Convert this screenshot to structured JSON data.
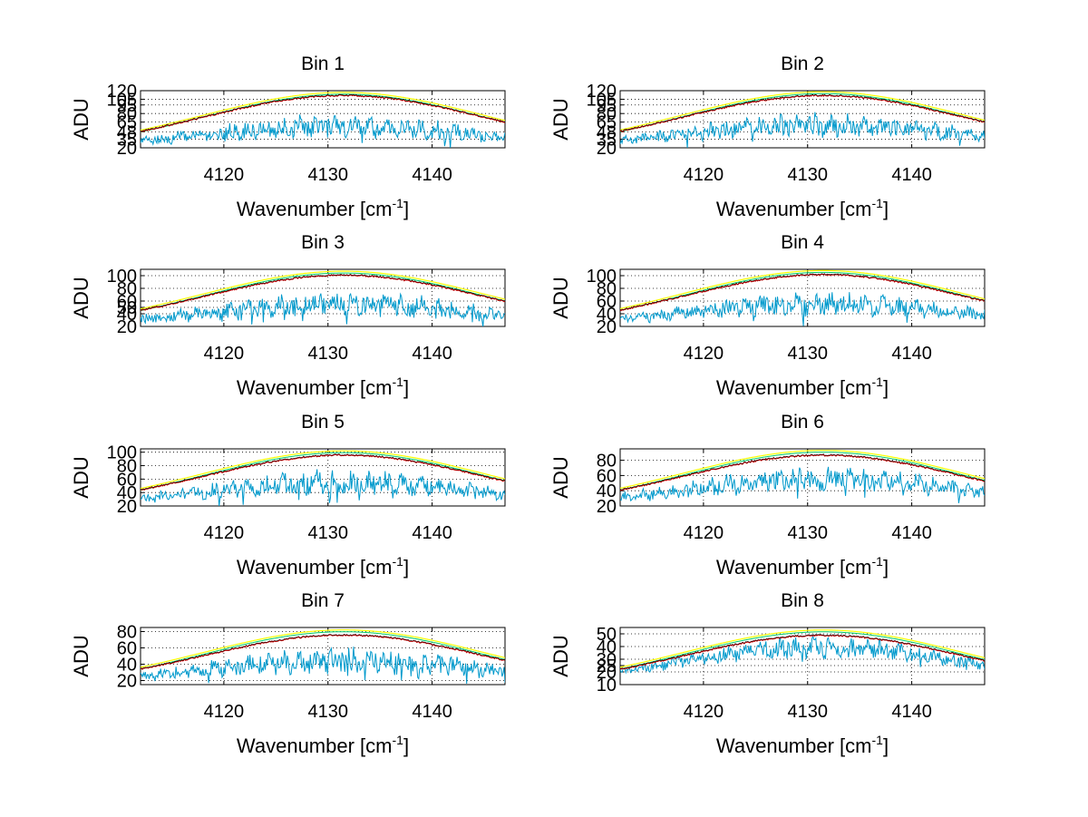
{
  "chart_data": [
    {
      "type": "line",
      "title": "Bin 1",
      "xlabel": "Wavenumber [cm",
      "xlabel_sup": "-1",
      "xlabel_close": "]",
      "ylabel": "ADU",
      "xlim": [
        4112,
        4147
      ],
      "ylim": [
        20,
        120
      ],
      "xticks": [
        4120,
        4130,
        4140
      ],
      "yticks": [
        20,
        35,
        48,
        65,
        80,
        95,
        105,
        120
      ],
      "ytick_labels": [
        "20",
        "35",
        "48",
        "65",
        "80",
        "95",
        "105",
        "120"
      ],
      "reference_peak": 117,
      "base_peak": 112,
      "absorption_center": 58,
      "absorption_amp": 25,
      "grid": true
    },
    {
      "type": "line",
      "title": "Bin 2",
      "xlabel": "Wavenumber [cm",
      "xlabel_sup": "-1",
      "xlabel_close": "]",
      "ylabel": "ADU",
      "xlim": [
        4112,
        4147
      ],
      "ylim": [
        20,
        120
      ],
      "xticks": [
        4120,
        4130,
        4140
      ],
      "yticks": [
        20,
        35,
        48,
        65,
        80,
        95,
        105,
        120
      ],
      "ytick_labels": [
        "20",
        "35",
        "48",
        "65",
        "80",
        "95",
        "105",
        "120"
      ],
      "reference_peak": 118,
      "base_peak": 112,
      "absorption_center": 60,
      "absorption_amp": 25,
      "grid": true
    },
    {
      "type": "line",
      "title": "Bin 3",
      "xlabel": "Wavenumber [cm",
      "xlabel_sup": "-1",
      "xlabel_close": "]",
      "ylabel": "ADU",
      "xlim": [
        4112,
        4147
      ],
      "ylim": [
        20,
        110
      ],
      "xticks": [
        4120,
        4130,
        4140
      ],
      "yticks": [
        20,
        40,
        50,
        60,
        80,
        100
      ],
      "ytick_labels": [
        "20",
        "40",
        "50",
        "60",
        "80",
        "100"
      ],
      "reference_peak": 107,
      "base_peak": 101,
      "absorption_center": 55,
      "absorption_amp": 25,
      "grid": true
    },
    {
      "type": "line",
      "title": "Bin 4",
      "xlabel": "Wavenumber [cm",
      "xlabel_sup": "-1",
      "xlabel_close": "]",
      "ylabel": "ADU",
      "xlim": [
        4112,
        4147
      ],
      "ylim": [
        20,
        110
      ],
      "xticks": [
        4120,
        4130,
        4140
      ],
      "yticks": [
        20,
        40,
        60,
        80,
        100
      ],
      "ytick_labels": [
        "20",
        "40",
        "60",
        "80",
        "100"
      ],
      "reference_peak": 108,
      "base_peak": 102,
      "absorption_center": 55,
      "absorption_amp": 22,
      "grid": true
    },
    {
      "type": "line",
      "title": "Bin 5",
      "xlabel": "Wavenumber [cm",
      "xlabel_sup": "-1",
      "xlabel_close": "]",
      "ylabel": "ADU",
      "xlim": [
        4112,
        4147
      ],
      "ylim": [
        20,
        105
      ],
      "xticks": [
        4120,
        4130,
        4140
      ],
      "yticks": [
        20,
        40,
        60,
        80,
        100
      ],
      "ytick_labels": [
        "20",
        "40",
        "60",
        "80",
        "100"
      ],
      "reference_peak": 102,
      "base_peak": 96,
      "absorption_center": 55,
      "absorption_amp": 22,
      "grid": true
    },
    {
      "type": "line",
      "title": "Bin 6",
      "xlabel": "Wavenumber [cm",
      "xlabel_sup": "-1",
      "xlabel_close": "]",
      "ylabel": "ADU",
      "xlim": [
        4112,
        4147
      ],
      "ylim": [
        20,
        95
      ],
      "xticks": [
        4120,
        4130,
        4140
      ],
      "yticks": [
        20,
        40,
        60,
        80
      ],
      "ytick_labels": [
        "20",
        "40",
        "60",
        "80"
      ],
      "reference_peak": 93,
      "base_peak": 87,
      "absorption_center": 55,
      "absorption_amp": 20,
      "grid": true
    },
    {
      "type": "line",
      "title": "Bin 7",
      "xlabel": "Wavenumber [cm",
      "xlabel_sup": "-1",
      "xlabel_close": "]",
      "ylabel": "ADU",
      "xlim": [
        4112,
        4147
      ],
      "ylim": [
        15,
        85
      ],
      "xticks": [
        4120,
        4130,
        4140
      ],
      "yticks": [
        20,
        40,
        60,
        80
      ],
      "ytick_labels": [
        "20",
        "40",
        "60",
        "80"
      ],
      "reference_peak": 82,
      "base_peak": 76,
      "absorption_center": 45,
      "absorption_amp": 20,
      "grid": true
    },
    {
      "type": "line",
      "title": "Bin 8",
      "xlabel": "Wavenumber [cm",
      "xlabel_sup": "-1",
      "xlabel_close": "]",
      "ylabel": "ADU",
      "xlim": [
        4112,
        4147
      ],
      "ylim": [
        10,
        55
      ],
      "xticks": [
        4120,
        4130,
        4140
      ],
      "yticks": [
        10,
        20,
        25,
        30,
        40,
        50
      ],
      "ytick_labels": [
        "10",
        "20",
        "25",
        "30",
        "40",
        "50"
      ],
      "reference_peak": 53,
      "base_peak": 49,
      "absorption_center": 40,
      "absorption_amp": 10,
      "grid": true
    }
  ],
  "series_colors": {
    "reference": "#ffff00",
    "reference_alt": "#00cc66",
    "base": "#000000",
    "base_overlay": "#cc0000",
    "absorption": "#0099cc"
  }
}
